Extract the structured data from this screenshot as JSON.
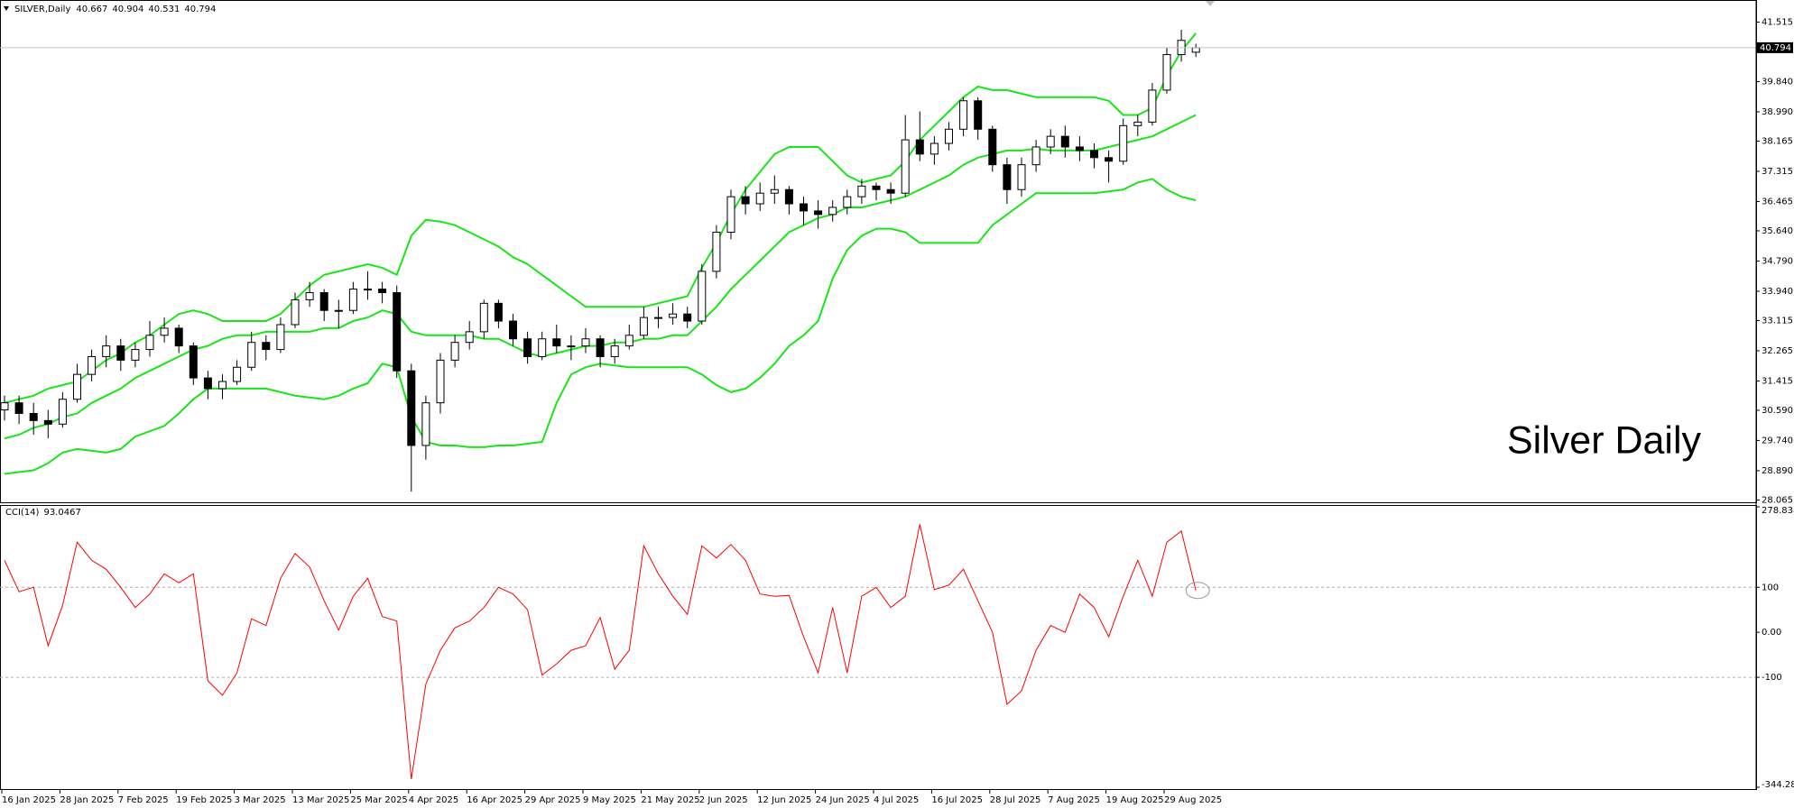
{
  "chart_data": [
    {
      "type": "candlestick",
      "title": "SILVER,Daily",
      "annotation": "Silver Daily",
      "up_color": "#ffffff",
      "down_color": "#000000",
      "outline_color": "#000000",
      "price_line_color": "#c0c0c0",
      "ylim": [
        28.0,
        42.06
      ],
      "yticks": [
        41.515,
        {
          "value": 39.84,
          "label": "39.840"
        },
        {
          "value": 38.99,
          "label": "38.990"
        },
        38.165,
        37.315,
        36.465,
        {
          "value": 35.64,
          "label": "35.640"
        },
        {
          "value": 34.79,
          "label": "34.790"
        },
        {
          "value": 33.94,
          "label": "33.940"
        },
        33.115,
        32.265,
        31.415,
        {
          "value": 30.59,
          "label": "30.590"
        },
        {
          "value": 29.74,
          "label": "29.740"
        },
        {
          "value": 28.89,
          "label": "28.890"
        },
        28.065
      ],
      "categories": [
        "16 Jan 2025",
        null,
        null,
        null,
        "28 Jan 2025",
        null,
        null,
        null,
        "7 Feb 2025",
        null,
        null,
        null,
        "19 Feb 2025",
        null,
        null,
        null,
        "3 Mar 2025",
        null,
        null,
        null,
        "13 Mar 2025",
        null,
        null,
        null,
        "25 Mar 2025",
        null,
        null,
        null,
        "4 Apr 2025",
        null,
        null,
        null,
        "16 Apr 2025",
        null,
        null,
        null,
        "29 Apr 2025",
        null,
        null,
        null,
        "9 May 2025",
        null,
        null,
        null,
        "21 May 2025",
        null,
        null,
        null,
        "2 Jun 2025",
        null,
        null,
        null,
        "12 Jun 2025",
        null,
        null,
        null,
        "24 Jun 2025",
        null,
        null,
        null,
        "4 Jul 2025",
        null,
        null,
        null,
        "16 Jul 2025",
        null,
        null,
        null,
        "28 Jul 2025",
        null,
        null,
        null,
        "7 Aug 2025",
        null,
        null,
        null,
        "19 Aug 2025",
        null,
        null,
        null,
        "29 Aug 2025",
        null,
        null
      ],
      "candles": [
        [
          30.6,
          31.0,
          30.3,
          30.8
        ],
        [
          30.8,
          31.0,
          30.2,
          30.5
        ],
        [
          30.5,
          30.8,
          29.9,
          30.3
        ],
        [
          30.3,
          30.6,
          29.8,
          30.2
        ],
        [
          30.2,
          31.1,
          30.1,
          30.9
        ],
        [
          30.9,
          31.9,
          30.8,
          31.6
        ],
        [
          31.6,
          32.3,
          31.4,
          32.1
        ],
        [
          32.1,
          32.7,
          31.8,
          32.4
        ],
        [
          32.4,
          32.6,
          31.7,
          32.0
        ],
        [
          32.0,
          32.5,
          31.8,
          32.3
        ],
        [
          32.3,
          33.1,
          32.1,
          32.7
        ],
        [
          32.7,
          33.2,
          32.5,
          32.9
        ],
        [
          32.9,
          33.0,
          32.2,
          32.4
        ],
        [
          32.4,
          32.5,
          31.3,
          31.5
        ],
        [
          31.5,
          31.7,
          30.9,
          31.2
        ],
        [
          31.2,
          31.6,
          30.9,
          31.4
        ],
        [
          31.4,
          32.0,
          31.3,
          31.8
        ],
        [
          31.8,
          32.8,
          31.7,
          32.5
        ],
        [
          32.5,
          32.7,
          32.0,
          32.3
        ],
        [
          32.3,
          33.2,
          32.2,
          33.0
        ],
        [
          33.0,
          33.9,
          32.9,
          33.7
        ],
        [
          33.7,
          34.2,
          33.5,
          33.9
        ],
        [
          33.9,
          34.0,
          33.1,
          33.4
        ],
        [
          33.4,
          33.7,
          32.9,
          33.4
        ],
        [
          33.4,
          34.2,
          33.3,
          34.0
        ],
        [
          34.0,
          34.5,
          33.7,
          34.0
        ],
        [
          34.0,
          34.2,
          33.6,
          33.9
        ],
        [
          33.9,
          34.1,
          31.5,
          31.7
        ],
        [
          31.7,
          31.9,
          28.3,
          29.6
        ],
        [
          29.6,
          31.0,
          29.2,
          30.8
        ],
        [
          30.8,
          32.2,
          30.5,
          32.0
        ],
        [
          32.0,
          32.7,
          31.8,
          32.5
        ],
        [
          32.5,
          33.1,
          32.3,
          32.8
        ],
        [
          32.8,
          33.7,
          32.6,
          33.6
        ],
        [
          33.6,
          33.7,
          32.9,
          33.1
        ],
        [
          33.1,
          33.3,
          32.4,
          32.6
        ],
        [
          32.6,
          32.8,
          31.9,
          32.1
        ],
        [
          32.1,
          32.8,
          32.0,
          32.6
        ],
        [
          32.6,
          33.0,
          32.2,
          32.4
        ],
        [
          32.4,
          32.7,
          32.0,
          32.4
        ],
        [
          32.4,
          32.9,
          32.2,
          32.6
        ],
        [
          32.6,
          32.7,
          31.8,
          32.1
        ],
        [
          32.1,
          32.6,
          31.9,
          32.4
        ],
        [
          32.4,
          33.0,
          32.3,
          32.7
        ],
        [
          32.7,
          33.5,
          32.6,
          33.2
        ],
        [
          33.2,
          33.5,
          32.9,
          33.2
        ],
        [
          33.2,
          33.6,
          33.0,
          33.3
        ],
        [
          33.3,
          33.5,
          32.9,
          33.1
        ],
        [
          33.1,
          34.7,
          33.0,
          34.5
        ],
        [
          34.5,
          35.8,
          34.3,
          35.6
        ],
        [
          35.6,
          36.8,
          35.4,
          36.6
        ],
        [
          36.6,
          36.9,
          36.1,
          36.4
        ],
        [
          36.4,
          37.0,
          36.2,
          36.7
        ],
        [
          36.7,
          37.2,
          36.4,
          36.8
        ],
        [
          36.8,
          36.9,
          36.1,
          36.4
        ],
        [
          36.4,
          36.6,
          35.8,
          36.2
        ],
        [
          36.2,
          36.5,
          35.7,
          36.1
        ],
        [
          36.1,
          36.5,
          35.9,
          36.3
        ],
        [
          36.3,
          36.8,
          36.1,
          36.6
        ],
        [
          36.6,
          37.1,
          36.4,
          36.9
        ],
        [
          36.9,
          37.0,
          36.5,
          36.8
        ],
        [
          36.8,
          37.0,
          36.4,
          36.7
        ],
        [
          36.7,
          38.9,
          36.6,
          38.2
        ],
        [
          38.2,
          39.0,
          37.6,
          37.8
        ],
        [
          37.8,
          38.3,
          37.5,
          38.1
        ],
        [
          38.1,
          38.7,
          37.9,
          38.5
        ],
        [
          38.5,
          39.4,
          38.3,
          39.3
        ],
        [
          39.3,
          39.4,
          38.2,
          38.5
        ],
        [
          38.5,
          38.6,
          37.3,
          37.5
        ],
        [
          37.5,
          37.7,
          36.4,
          36.8
        ],
        [
          36.8,
          37.7,
          36.6,
          37.5
        ],
        [
          37.5,
          38.2,
          37.3,
          38.0
        ],
        [
          38.0,
          38.5,
          37.8,
          38.3
        ],
        [
          38.3,
          38.6,
          37.7,
          38.0
        ],
        [
          38.0,
          38.3,
          37.6,
          37.9
        ],
        [
          37.9,
          38.1,
          37.4,
          37.7
        ],
        [
          37.7,
          37.9,
          37.0,
          37.6
        ],
        [
          37.6,
          38.8,
          37.5,
          38.6
        ],
        [
          38.6,
          38.9,
          38.3,
          38.7
        ],
        [
          38.7,
          39.8,
          38.6,
          39.6
        ],
        [
          39.6,
          40.8,
          39.5,
          40.6
        ],
        [
          40.6,
          41.3,
          40.4,
          41.0
        ],
        [
          40.667,
          40.904,
          40.531,
          40.794
        ]
      ],
      "series": [
        {
          "color": "#19e619",
          "values": [
            30.8,
            30.9,
            31.0,
            31.2,
            31.3,
            31.4,
            31.7,
            32.0,
            32.2,
            32.5,
            32.7,
            33.0,
            33.3,
            33.4,
            33.3,
            33.1,
            33.1,
            33.1,
            33.1,
            33.3,
            33.7,
            34.1,
            34.4,
            34.5,
            34.6,
            34.7,
            34.6,
            34.4,
            35.5,
            35.95,
            35.9,
            35.8,
            35.6,
            35.4,
            35.2,
            34.9,
            34.7,
            34.4,
            34.1,
            33.8,
            33.5,
            33.5,
            33.5,
            33.5,
            33.5,
            33.6,
            33.7,
            33.8,
            34.6,
            35.3,
            36.1,
            36.8,
            37.3,
            37.8,
            38.0,
            38.0,
            38.0,
            37.6,
            37.2,
            37.0,
            37.1,
            37.2,
            37.6,
            38.2,
            38.6,
            39.0,
            39.4,
            39.7,
            39.6,
            39.6,
            39.5,
            39.4,
            39.4,
            39.4,
            39.4,
            39.4,
            39.3,
            38.9,
            38.9,
            39.1,
            40.0,
            40.7,
            41.2
          ]
        },
        {
          "color": "#19e619",
          "values": [
            29.8,
            29.9,
            30.1,
            30.2,
            30.4,
            30.5,
            30.8,
            31.0,
            31.2,
            31.5,
            31.7,
            31.9,
            32.1,
            32.3,
            32.4,
            32.6,
            32.7,
            32.7,
            32.8,
            32.8,
            32.8,
            32.8,
            32.9,
            32.9,
            33.1,
            33.2,
            33.4,
            33.3,
            32.8,
            32.7,
            32.7,
            32.7,
            32.7,
            32.6,
            32.6,
            32.4,
            32.2,
            32.1,
            32.2,
            32.3,
            32.4,
            32.4,
            32.5,
            32.5,
            32.6,
            32.6,
            32.7,
            32.7,
            33.1,
            33.5,
            34.0,
            34.4,
            34.8,
            35.2,
            35.6,
            35.8,
            36.0,
            36.1,
            36.3,
            36.3,
            36.4,
            36.5,
            36.6,
            36.8,
            37.0,
            37.2,
            37.5,
            37.7,
            37.8,
            37.9,
            37.9,
            37.95,
            37.9,
            37.9,
            37.9,
            37.9,
            38.0,
            38.1,
            38.2,
            38.3,
            38.5,
            38.7,
            38.9
          ]
        },
        {
          "color": "#19e619",
          "values": [
            28.8,
            28.85,
            28.9,
            29.1,
            29.4,
            29.5,
            29.45,
            29.4,
            29.5,
            29.85,
            30.0,
            30.15,
            30.5,
            30.9,
            31.2,
            31.2,
            31.2,
            31.2,
            31.2,
            31.1,
            31.0,
            30.95,
            30.9,
            31.0,
            31.2,
            31.35,
            31.9,
            31.8,
            30.4,
            29.7,
            29.6,
            29.6,
            29.55,
            29.55,
            29.6,
            29.6,
            29.65,
            29.7,
            30.8,
            31.6,
            31.8,
            31.9,
            31.85,
            31.8,
            31.8,
            31.8,
            31.8,
            31.8,
            31.6,
            31.3,
            31.1,
            31.2,
            31.5,
            31.9,
            32.4,
            32.7,
            33.1,
            34.3,
            35.1,
            35.5,
            35.7,
            35.7,
            35.6,
            35.3,
            35.3,
            35.3,
            35.3,
            35.3,
            35.8,
            36.1,
            36.4,
            36.7,
            36.7,
            36.7,
            36.7,
            36.7,
            36.75,
            36.8,
            37.0,
            37.1,
            36.8,
            36.6,
            36.5
          ]
        }
      ]
    },
    {
      "type": "line",
      "title": "CCI(14)",
      "color": "#ff0000",
      "level_color": "#b0b0b0",
      "ylim": [
        -344.283,
        278.8385
      ],
      "yticks": [
        278.8385,
        100,
        {
          "value": 0,
          "label": "0.00"
        },
        -100,
        -344.283
      ],
      "levels": [
        100,
        -100
      ],
      "values": [
        160,
        90,
        100,
        -30,
        60,
        200,
        160,
        140,
        100,
        55,
        85,
        130,
        110,
        130,
        -108,
        -140,
        -90,
        30,
        15,
        120,
        175,
        145,
        70,
        5,
        80,
        120,
        35,
        25,
        -326,
        -115,
        -40,
        10,
        25,
        55,
        100,
        85,
        50,
        -95,
        -70,
        -40,
        -30,
        33,
        -82,
        -40,
        192,
        130,
        80,
        40,
        192,
        165,
        195,
        160,
        85,
        80,
        82,
        -10,
        -90,
        55,
        -90,
        80,
        100,
        55,
        80,
        240,
        95,
        105,
        140,
        70,
        0,
        -160,
        -130,
        -40,
        15,
        0,
        85,
        55,
        -10,
        80,
        160,
        80,
        200,
        225,
        93.0467
      ]
    }
  ]
}
